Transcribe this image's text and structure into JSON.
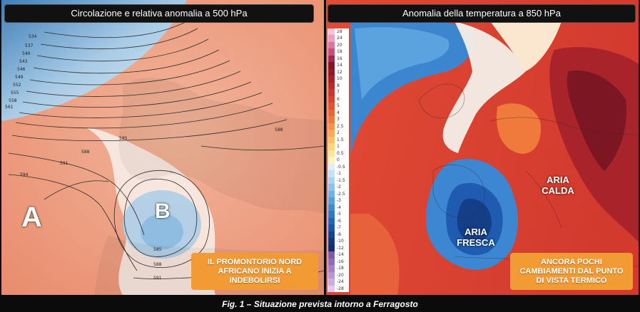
{
  "left_panel": {
    "title": "Circolazione e relativa anomalia a 500 hPa",
    "high_label": "A",
    "low_label": "B",
    "note": "IL PROMONTORIO NORD\nAFRICANO INIZIA A\nINDEBOLIRSI",
    "contour_labels": [
      "534",
      "537",
      "540",
      "543",
      "546",
      "549",
      "552",
      "555",
      "558",
      "561",
      "585",
      "588",
      "588",
      "591",
      "594",
      "585",
      "588",
      "591"
    ],
    "colors": {
      "positive_anomaly": "#e8896a",
      "negative_anomaly": "#7fb3de",
      "neutral": "#ffffff"
    }
  },
  "right_panel": {
    "title": "Anomalia della temperatura a 850 hPa",
    "warm_label": "ARIA\nCALDA",
    "cool_label": "ARIA\nFRESCA",
    "note": "ANCORA POCHI\nCAMBIAMENTI DAL PUNTO\nDI VISTA TERMICO",
    "colorbar_labels": [
      "28",
      "24",
      "20",
      "18",
      "16",
      "14",
      "12",
      "10",
      "8",
      "7",
      "6",
      "5",
      "4",
      "3",
      "2.5",
      "2",
      "1.5",
      "1",
      "0.5",
      "0",
      "-0.5",
      "-1",
      "-1.5",
      "-2",
      "-2.5",
      "-3",
      "-4",
      "-5",
      "-6",
      "-7",
      "-8",
      "-10",
      "-12",
      "-14",
      "-16",
      "-18",
      "-20",
      "-24",
      "-28"
    ],
    "colors": {
      "warm": "#d8402e",
      "hot": "#9a1e28",
      "cool": "#2a6fc4",
      "cold": "#123f8a"
    }
  },
  "caption": "Fig. 1 – Situazione prevista intorno a Ferragosto"
}
